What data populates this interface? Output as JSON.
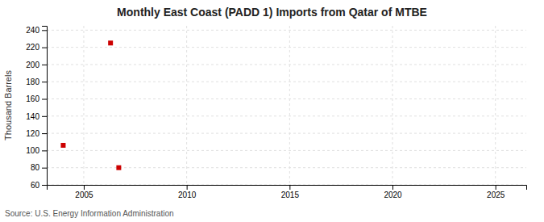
{
  "chart_data": {
    "type": "scatter",
    "title": "Monthly East Coast (PADD 1) Imports from Qatar of MTBE",
    "ylabel": "Thousand Barrels",
    "source": "Source: U.S. Energy Information Administration",
    "x": [
      2004.0,
      2006.3,
      2006.7
    ],
    "values": [
      106,
      225,
      80
    ],
    "color": "#cc0000",
    "marker": "square",
    "xlim": [
      2003.2,
      2026.5
    ],
    "ylim": [
      60,
      245
    ],
    "xticks": [
      2005,
      2010,
      2015,
      2020,
      2025
    ],
    "yticks": [
      60,
      80,
      100,
      120,
      140,
      160,
      180,
      200,
      220,
      240
    ],
    "grid": true
  }
}
